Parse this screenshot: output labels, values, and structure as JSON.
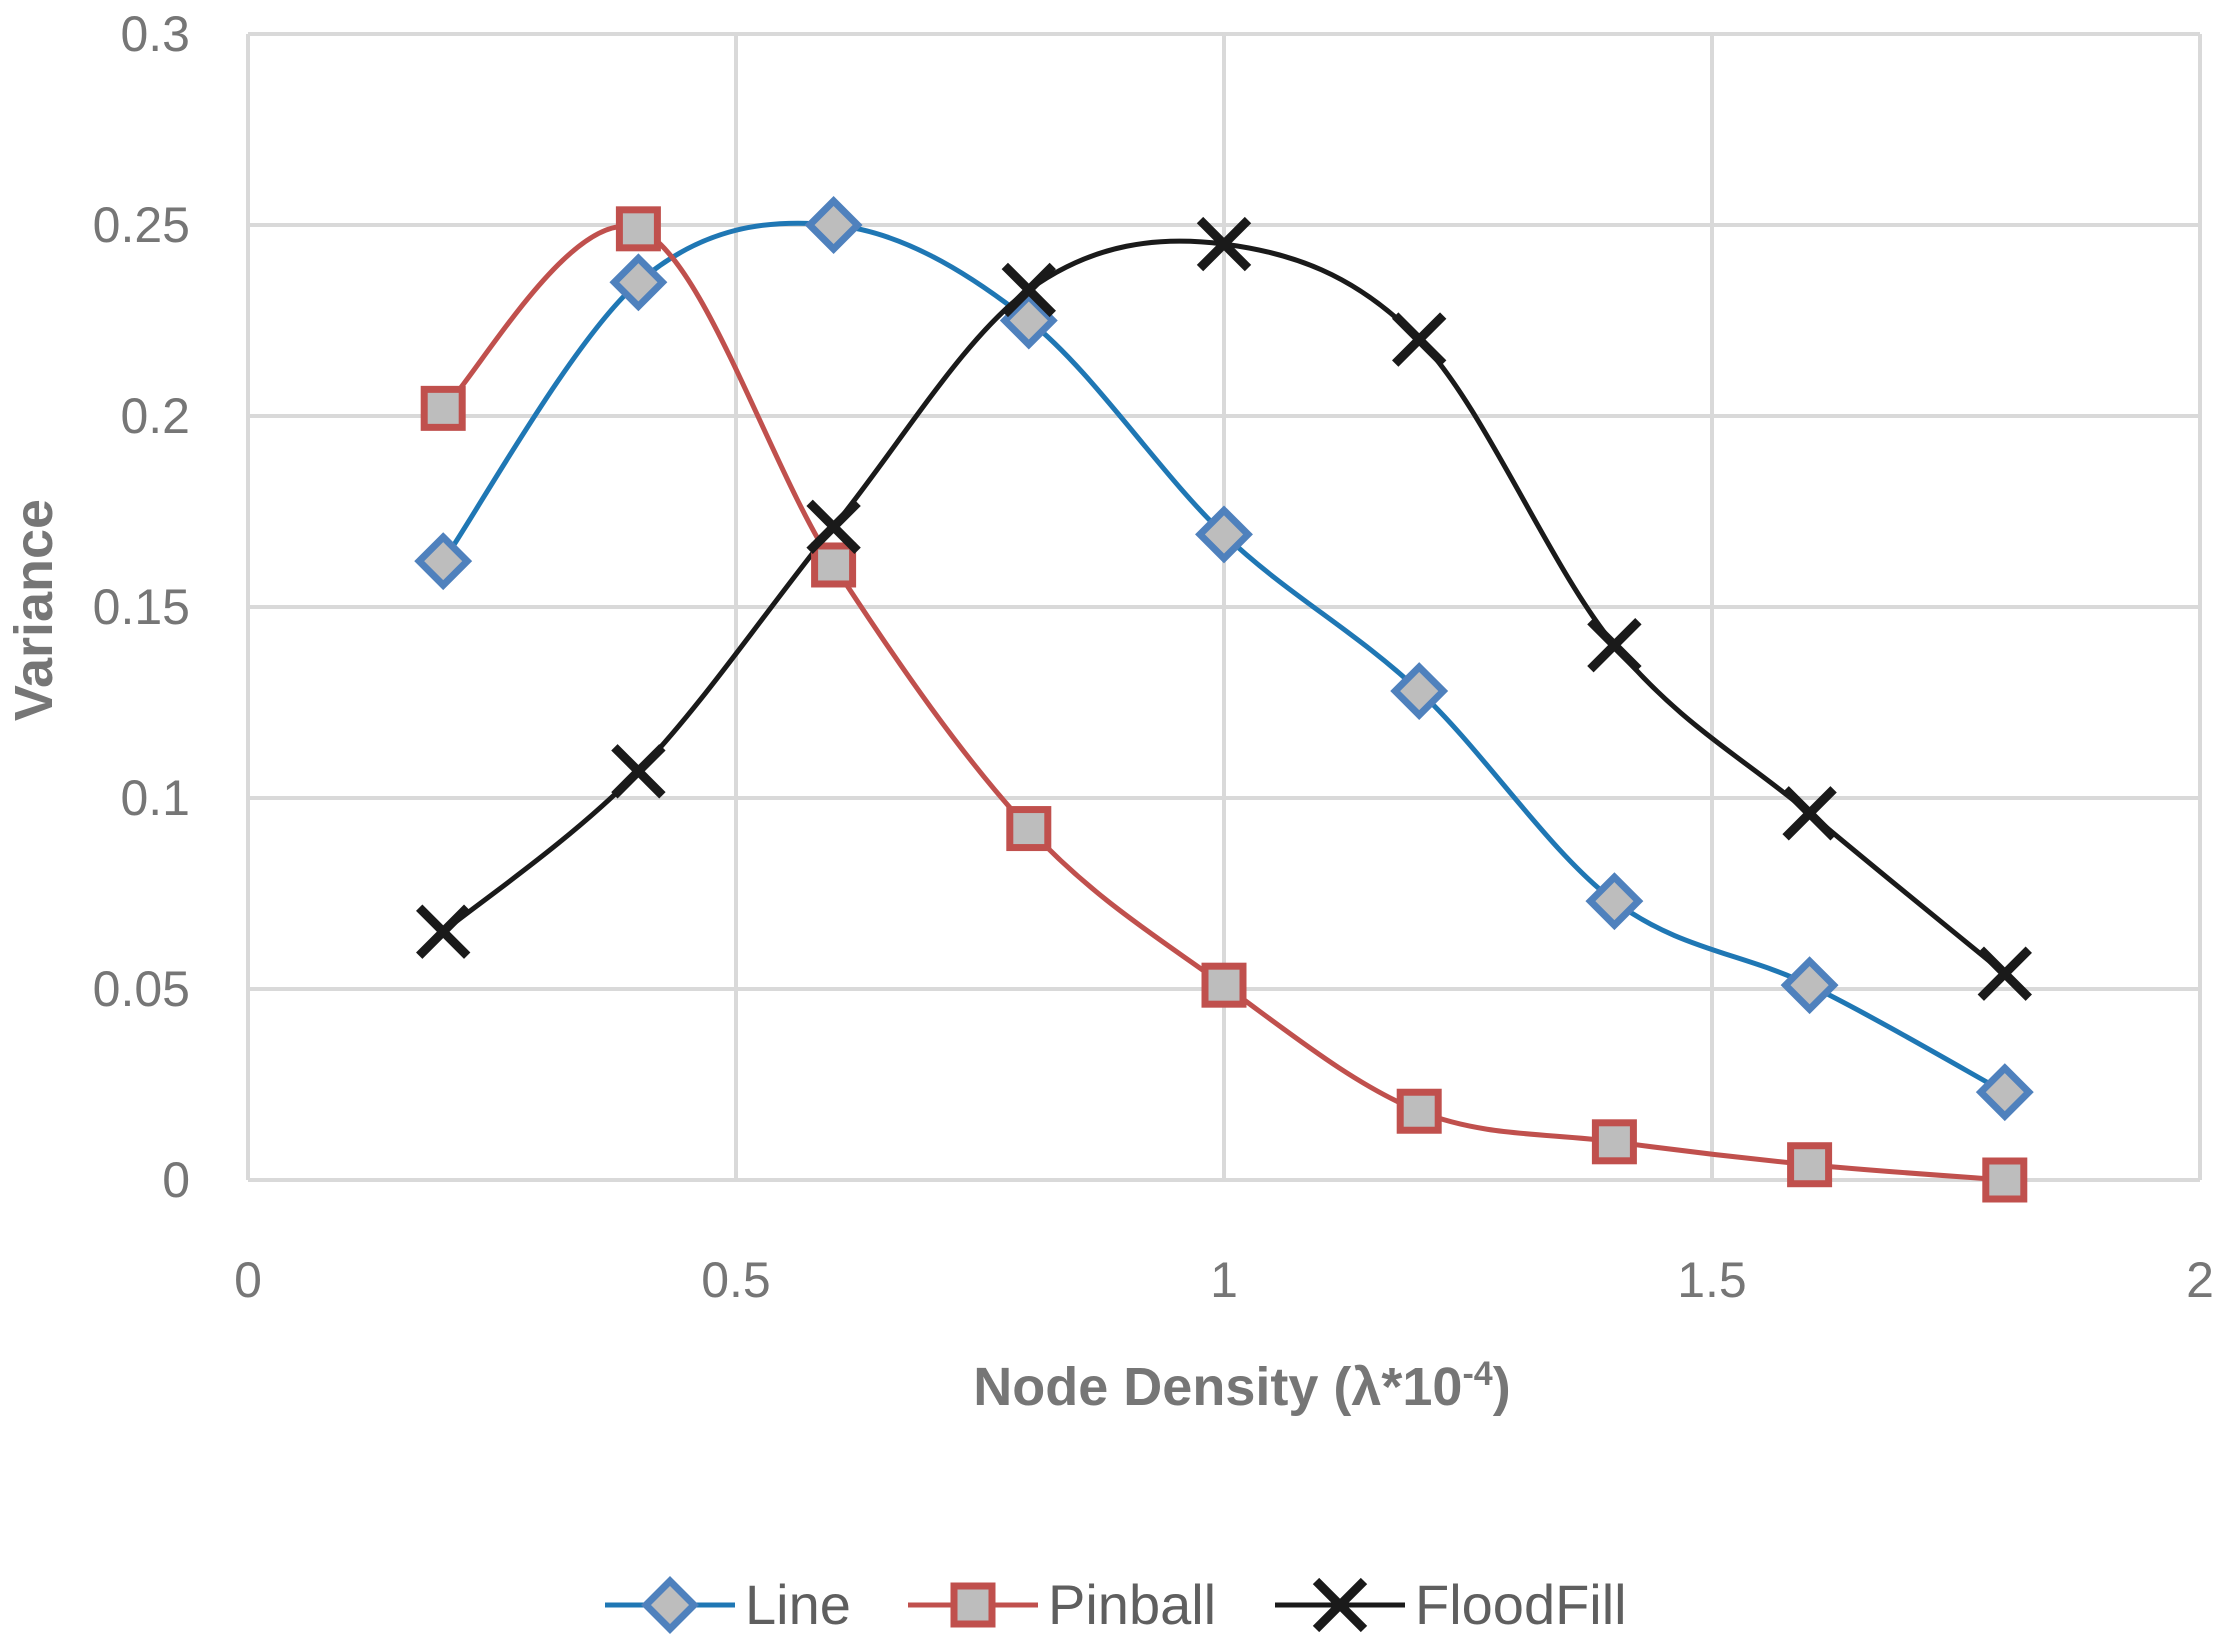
{
  "chart_data": {
    "type": "line",
    "title": "",
    "xlabel": "Node Density (λ*10",
    "xlabel_superscript": "-4",
    "xlabel_suffix": ")",
    "ylabel": "Variance",
    "xlim": [
      0,
      2
    ],
    "ylim": [
      0,
      0.3
    ],
    "x_ticks": [
      "0",
      "0.5",
      "1",
      "1.5",
      "2"
    ],
    "y_ticks": [
      "0",
      "0.05",
      "0.1",
      "0.15",
      "0.2",
      "0.25",
      "0.3"
    ],
    "grid": true,
    "legend_position": "bottom",
    "smooth": true,
    "x": [
      0.2,
      0.4,
      0.6,
      0.8,
      1.0,
      1.2,
      1.4,
      1.6,
      1.8
    ],
    "series": [
      {
        "name": "Line",
        "color": "#1f77b4",
        "marker": "diamond",
        "values": [
          0.162,
          0.235,
          0.25,
          0.225,
          0.169,
          0.128,
          0.073,
          0.051,
          0.023
        ]
      },
      {
        "name": "Pinball",
        "color": "#c0504d",
        "marker": "square",
        "values": [
          0.202,
          0.249,
          0.161,
          0.092,
          0.051,
          0.018,
          0.01,
          0.004,
          0.0
        ]
      },
      {
        "name": "FloodFill",
        "color": "#1a1a1a",
        "marker": "x",
        "values": [
          0.065,
          0.107,
          0.171,
          0.233,
          0.245,
          0.22,
          0.14,
          0.096,
          0.054
        ]
      }
    ]
  }
}
